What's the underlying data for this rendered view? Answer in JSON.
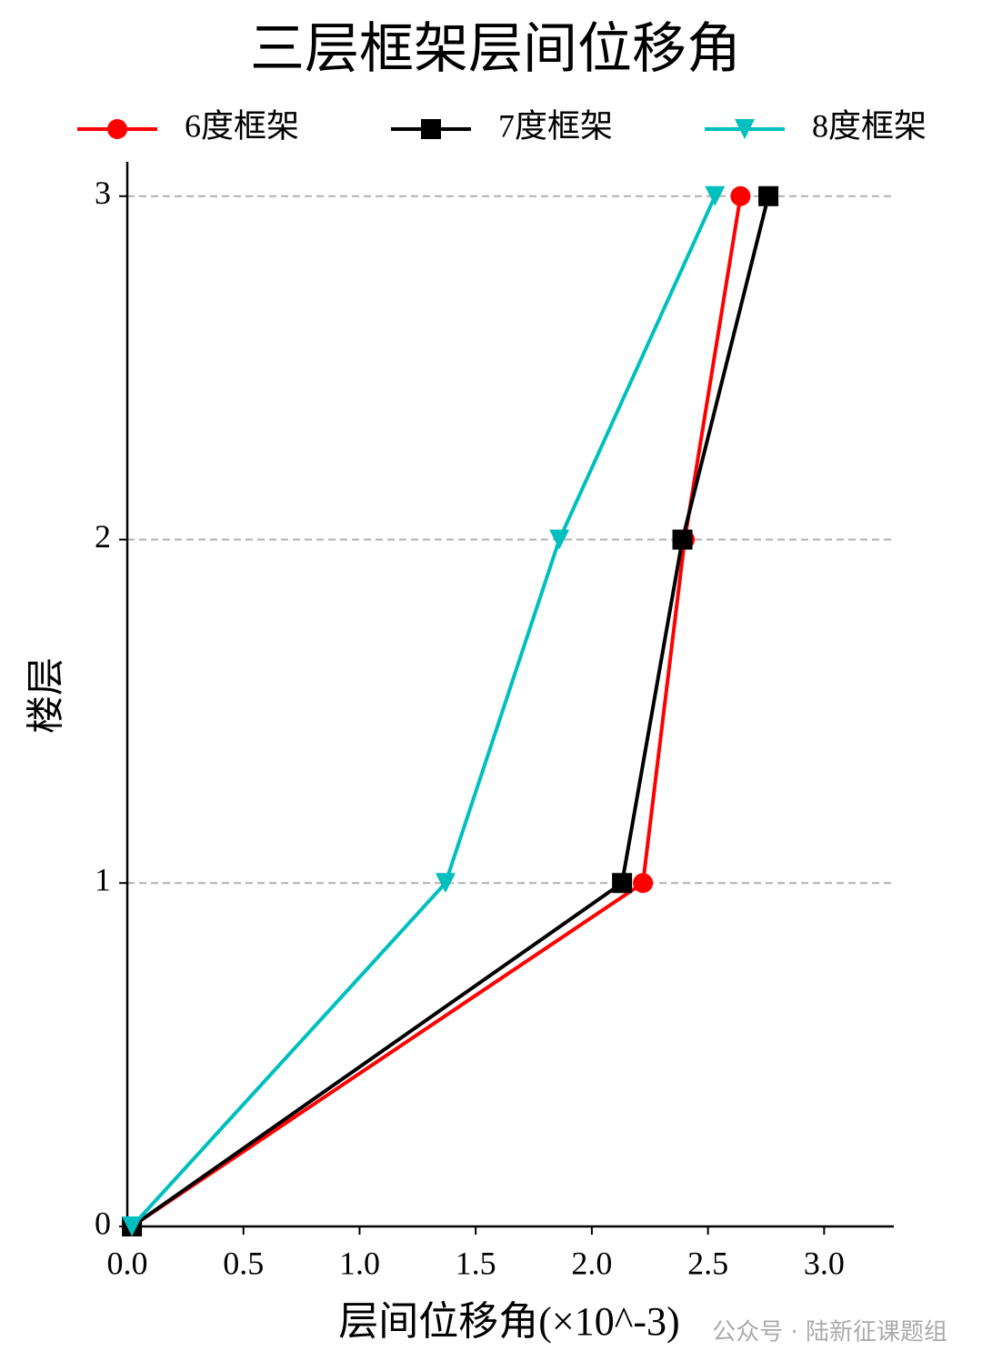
{
  "chart_data": {
    "type": "line",
    "title": "三层框架层间位移角",
    "x_label": "层间位移角(×10^-3)",
    "y_label": "楼层",
    "y": [
      0,
      1,
      2,
      3
    ],
    "series": [
      {
        "name": "6度框架",
        "color": "#ff0000",
        "marker": "circle",
        "values": [
          0.02,
          2.22,
          2.4,
          2.64
        ]
      },
      {
        "name": "7度框架",
        "color": "#000000",
        "marker": "square",
        "values": [
          0.02,
          2.13,
          2.39,
          2.76
        ]
      },
      {
        "name": "8度框架",
        "color": "#00bfbf",
        "marker": "triangle-down",
        "values": [
          0.02,
          1.37,
          1.86,
          2.53
        ]
      }
    ],
    "xlim": [
      0,
      3.3
    ],
    "ylim": [
      0,
      3.1
    ],
    "xticks": [
      {
        "value": 0,
        "label": "0.0"
      },
      0.5,
      {
        "value": 1,
        "label": "1.0"
      },
      1.5,
      {
        "value": 2,
        "label": "2.0"
      },
      2.5,
      {
        "value": 3,
        "label": "3.0"
      }
    ],
    "yticks": [
      0,
      1,
      2,
      3
    ],
    "grid": true,
    "legend": "top",
    "watermark": "公众号 · 陆新征课题组"
  }
}
